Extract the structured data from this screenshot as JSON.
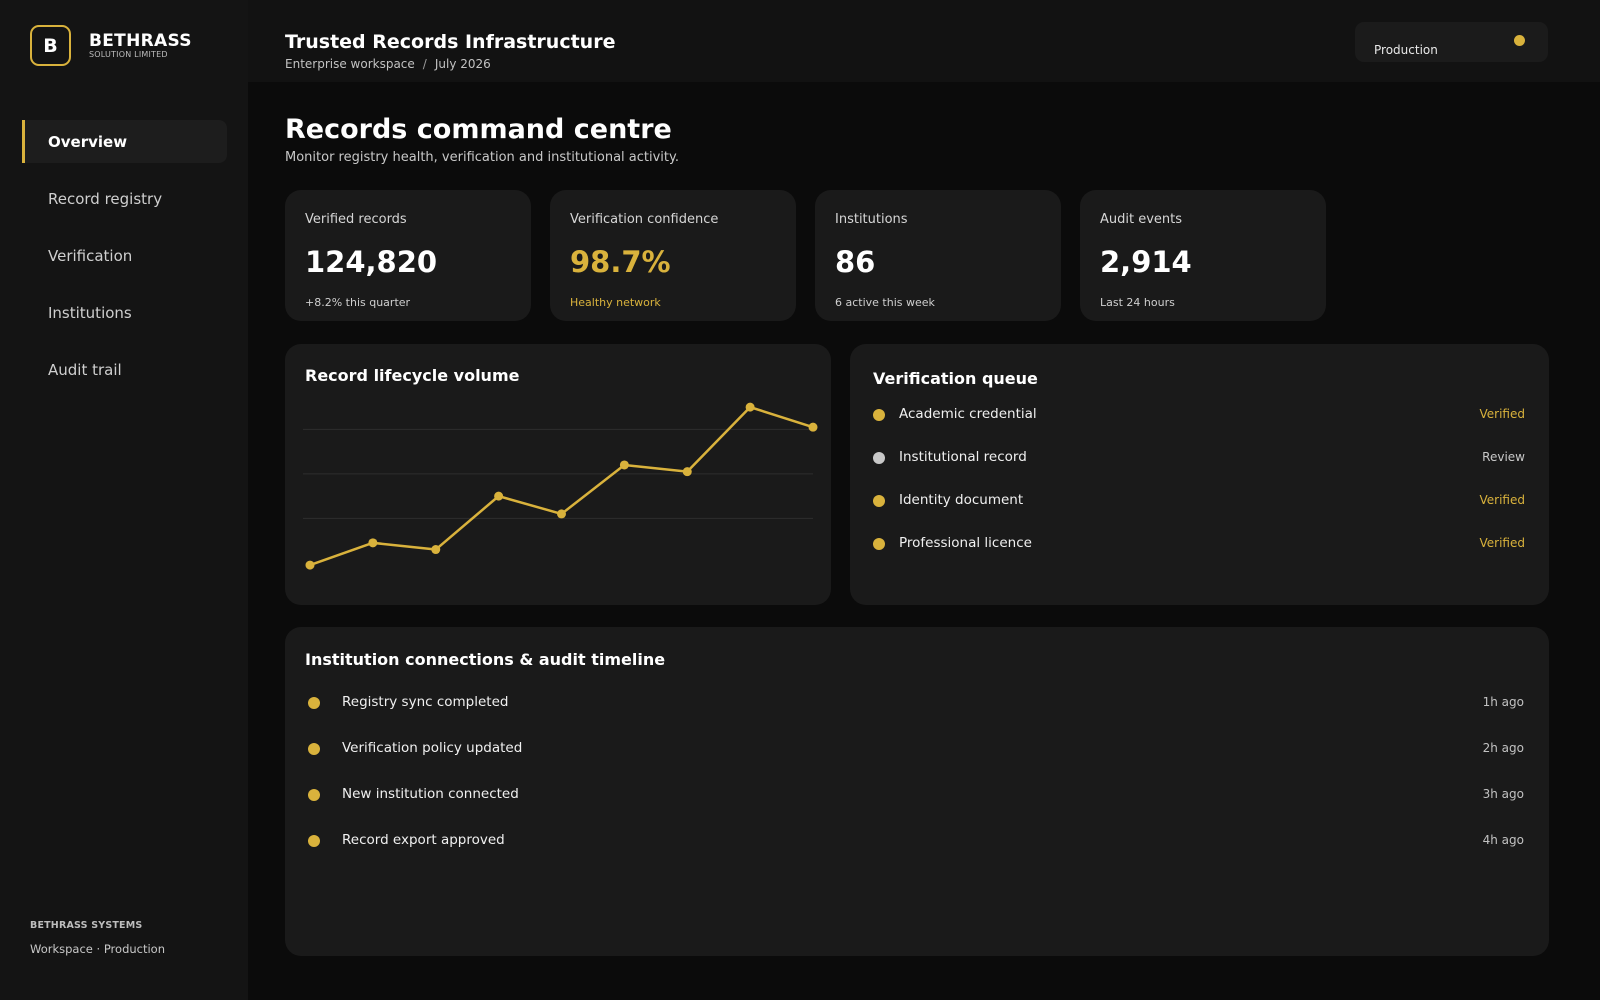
{
  "brand": {
    "logo_letter": "B",
    "name": "BETHRASS",
    "subtitle": "SOLUTION LIMITED"
  },
  "sidebar": {
    "items": [
      {
        "label": "Overview",
        "active": true
      },
      {
        "label": "Record registry",
        "active": false
      },
      {
        "label": "Verification",
        "active": false
      },
      {
        "label": "Institutions",
        "active": false
      },
      {
        "label": "Audit trail",
        "active": false
      }
    ],
    "footer": {
      "system": "BETHRASS SYSTEMS",
      "workspace": "Workspace · Production"
    }
  },
  "header": {
    "title": "Trusted Records Infrastructure",
    "breadcrumb": [
      "Enterprise workspace",
      "July 2026"
    ],
    "breadcrumb_separator": "/",
    "environment": "Production"
  },
  "main": {
    "title": "Records command centre",
    "subtitle": "Monitor registry health, verification and institutional activity.",
    "stats": [
      {
        "label": "Verified records",
        "value": "124,820",
        "note": "+8.2% this quarter",
        "highlight": false
      },
      {
        "label": "Verification confidence",
        "value": "98.7%",
        "note": "Healthy network",
        "highlight": true
      },
      {
        "label": "Institutions",
        "value": "86",
        "note": "6 active this week",
        "highlight": false
      },
      {
        "label": "Audit events",
        "value": "2,914",
        "note": "Last 24 hours",
        "highlight": false
      }
    ],
    "queue": {
      "title": "Verification queue",
      "items": [
        {
          "name": "Academic credential",
          "status": "Verified",
          "color": "#d9b23c"
        },
        {
          "name": "Institutional record",
          "status": "Review",
          "color": "#c8c8c8"
        },
        {
          "name": "Identity document",
          "status": "Verified",
          "color": "#d9b23c"
        },
        {
          "name": "Professional licence",
          "status": "Verified",
          "color": "#d9b23c"
        }
      ]
    },
    "timeline": {
      "title": "Institution connections & audit timeline",
      "items": [
        {
          "event": "Registry sync completed",
          "time": "1h ago"
        },
        {
          "event": "Verification policy updated",
          "time": "2h ago"
        },
        {
          "event": "New institution connected",
          "time": "3h ago"
        },
        {
          "event": "Record export approved",
          "time": "4h ago"
        }
      ]
    }
  },
  "colors": {
    "accent": "#d9b23c",
    "background": "#0b0b0b",
    "card": "#1a1a1a",
    "sidebar": "#141414"
  },
  "chart_data": {
    "type": "line",
    "title": "Record lifecycle volume",
    "x": [
      1,
      2,
      3,
      4,
      5,
      6,
      7,
      8,
      9
    ],
    "series": [
      {
        "values": [
          4,
          14,
          11,
          35,
          27,
          49,
          46,
          75,
          66
        ]
      }
    ],
    "ylim": [
      0,
      80
    ],
    "grid": true,
    "color": "#d9b23c"
  }
}
